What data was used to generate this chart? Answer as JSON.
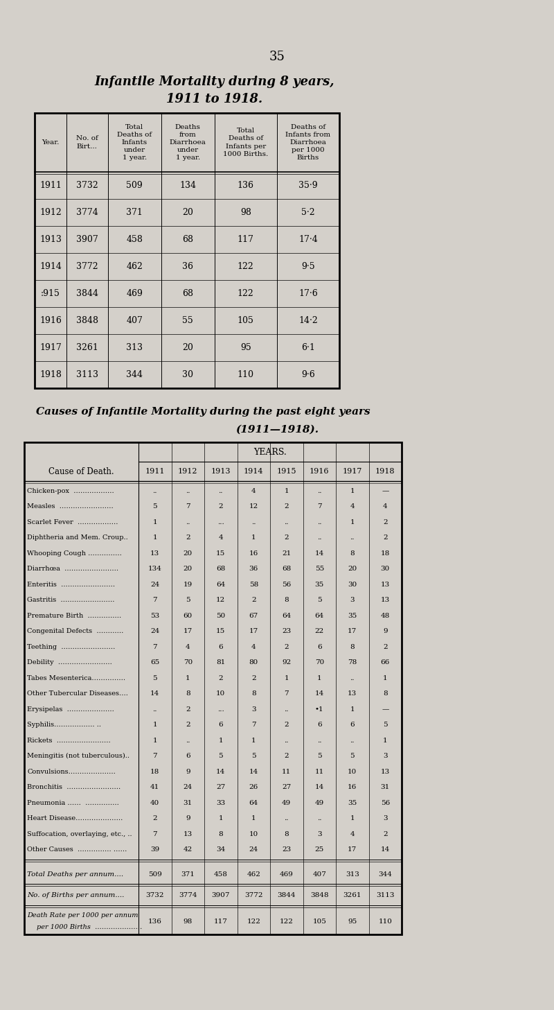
{
  "page_number": "35",
  "title1": "Infantile Mortality during 8 years,",
  "title2": "1911 to 1918.",
  "title3": "Causes of Infantile Mortality during the past eight years",
  "title4": "(1911—1918).",
  "bg_color": "#d4d0ca",
  "table1": {
    "headers": [
      "Year.",
      "No. of\nBirt...",
      "Total\nDeaths of\nInfants\nunder\n1 year.",
      "Deaths\nfrom\nDiarrhoea\nunder\n1 year.",
      "Total\nDeaths of\nInfants per\n1000 Births.",
      "Deaths of\nInfants from\nDiarrhoea\nper 1000\nBirths"
    ],
    "rows": [
      [
        "1911",
        "3732",
        "509",
        "134",
        "136",
        "35·9"
      ],
      [
        "1912",
        "3774",
        "371",
        "20",
        "98",
        "5·2"
      ],
      [
        "1913",
        "3907",
        "458",
        "68",
        "117",
        "17·4"
      ],
      [
        "1914",
        "3772",
        "462",
        "36",
        "122",
        "9·5"
      ],
      [
        ":915",
        "3844",
        "469",
        "68",
        "122",
        "17·6"
      ],
      [
        "1916",
        "3848",
        "407",
        "55",
        "105",
        "14·2"
      ],
      [
        "1917",
        "3261",
        "313",
        "20",
        "95",
        "6·1"
      ],
      [
        "1918",
        "3113",
        "344",
        "30",
        "110",
        "9·6"
      ]
    ]
  },
  "table2": {
    "years": [
      "1911",
      "1912",
      "1913",
      "1914",
      "1915",
      "1916",
      "1917",
      "1918"
    ],
    "causes": [
      [
        "Chicken-pox  ………………",
        "..",
        "..",
        "..",
        "4",
        "1",
        "..",
        "1",
        "—"
      ],
      [
        "Measles  ……………………",
        "5",
        "7",
        "2",
        "12",
        "2",
        "7",
        "4",
        "4"
      ],
      [
        "Scarlet Fever  ………………",
        "1",
        "..",
        "...",
        "..",
        "..",
        "..",
        "1",
        "2"
      ],
      [
        "Diphtheria and Mem. Croup..",
        "1",
        "2",
        "4",
        "1",
        "2",
        "..",
        "..",
        "2"
      ],
      [
        "Whooping Cough ……………",
        "13",
        "20",
        "15",
        "16",
        "21",
        "14",
        "8",
        "18"
      ],
      [
        "Diarrhœa  ……………………",
        "134",
        "20",
        "68",
        "36",
        "68",
        "55",
        "20",
        "30"
      ],
      [
        "Enteritis  ……………………",
        "24",
        "19",
        "64",
        "58",
        "56",
        "35",
        "30",
        "13"
      ],
      [
        "Gastritis  ……………………",
        "7",
        "5",
        "12",
        "2",
        "8",
        "5",
        "3",
        "13"
      ],
      [
        "Premature Birth  ……………",
        "53",
        "60",
        "50",
        "67",
        "64",
        "64",
        "35",
        "48"
      ],
      [
        "Congenital Defects  …………",
        "24",
        "17",
        "15",
        "17",
        "23",
        "22",
        "17",
        "9"
      ],
      [
        "Teething  ……………………",
        "7",
        "4",
        "6",
        "4",
        "2",
        "6",
        "8",
        "2"
      ],
      [
        "Debility  ……………………",
        "65",
        "70",
        "81",
        "80",
        "92",
        "70",
        "78",
        "66"
      ],
      [
        "Tabes Mesenterica……………",
        "5",
        "1",
        "2",
        "2",
        "1",
        "1",
        "..",
        "1"
      ],
      [
        "Other Tubercular Diseases….",
        "14",
        "8",
        "10",
        "8",
        "7",
        "14",
        "13",
        "8"
      ],
      [
        "Erysipelas  …………………",
        "..",
        "2",
        "...",
        "3",
        "..",
        "•1",
        "1",
        "—"
      ],
      [
        "Syphilis……………… ..",
        "1",
        "2",
        "6",
        "7",
        "2",
        "6",
        "6",
        "5"
      ],
      [
        "Rickets  ……………………",
        "1",
        "..",
        "1",
        "1",
        "..",
        "..",
        "..",
        "1"
      ],
      [
        "Meningitis (not tuberculous)..",
        "7",
        "6",
        "5",
        "5",
        "2",
        "5",
        "5",
        "3"
      ],
      [
        "Convulsions…………………",
        "18",
        "9",
        "14",
        "14",
        "11",
        "11",
        "10",
        "13"
      ],
      [
        "Bronchitis  ……………………",
        "41",
        "24",
        "27",
        "26",
        "27",
        "14",
        "16",
        "31"
      ],
      [
        "Pneumonia ……  ……………",
        "40",
        "31",
        "33",
        "64",
        "49",
        "49",
        "35",
        "56"
      ],
      [
        "Heart Disease…………………",
        "2",
        "9",
        "1",
        "1",
        "..",
        "..",
        "1",
        "3"
      ],
      [
        "Suffocation, overlaying, etc., ..",
        "7",
        "13",
        "8",
        "10",
        "8",
        "3",
        "4",
        "2"
      ],
      [
        "Other Causes  …………… ……",
        "39",
        "42",
        "34",
        "24",
        "23",
        "25",
        "17",
        "14"
      ]
    ],
    "totals": [
      "509",
      "371",
      "458",
      "462",
      "469",
      "407",
      "313",
      "344"
    ],
    "births": [
      "3732",
      "3774",
      "3907",
      "3772",
      "3844",
      "3848",
      "3261",
      "3113"
    ],
    "per1000": [
      "136",
      "98",
      "117",
      "122",
      "122",
      "105",
      "95",
      "110"
    ]
  }
}
